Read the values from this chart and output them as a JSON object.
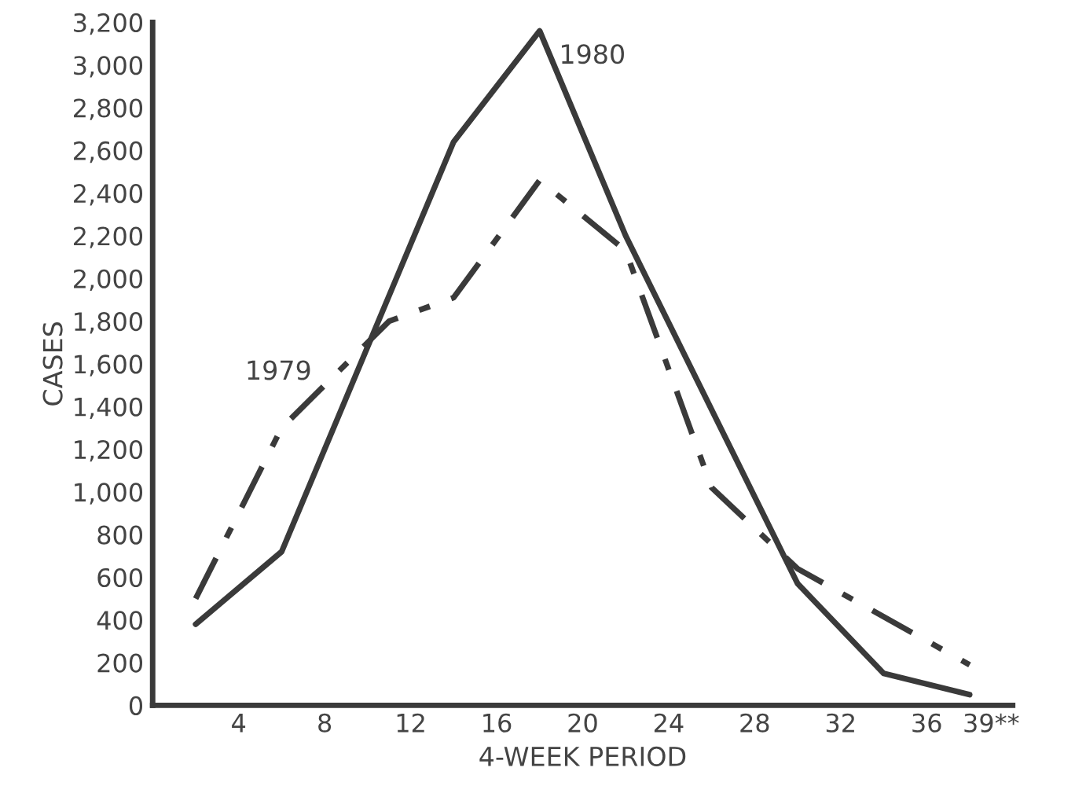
{
  "chart_data": {
    "type": "line",
    "xlabel": "4-WEEK PERIOD",
    "ylabel": "CASES",
    "series": [
      {
        "name": "1980",
        "color": "#3a3a3a",
        "line_style": "solid",
        "x": [
          2,
          6,
          14,
          18,
          22,
          30,
          34,
          38
        ],
        "values": [
          380,
          720,
          2640,
          3160,
          2200,
          570,
          150,
          50
        ]
      },
      {
        "name": "1979",
        "color": "#3a3a3a",
        "line_style": "dashdot",
        "x": [
          2,
          6,
          11,
          14,
          18,
          22,
          26,
          30,
          38
        ],
        "values": [
          500,
          1300,
          1800,
          1910,
          2460,
          2130,
          1020,
          640,
          190
        ]
      }
    ],
    "xlim": [
      0,
      40
    ],
    "xticks": [
      4,
      8,
      12,
      16,
      20,
      24,
      28,
      32,
      36,
      {
        "value": 39,
        "label": "39**"
      }
    ],
    "ylim": [
      0,
      3200
    ],
    "yticks": [
      0,
      200,
      400,
      600,
      800,
      {
        "value": 1000,
        "label": "1,000"
      },
      {
        "value": 1200,
        "label": "1,200"
      },
      {
        "value": 1400,
        "label": "1,400"
      },
      {
        "value": 1600,
        "label": "1,600"
      },
      {
        "value": 1800,
        "label": "1,800"
      },
      {
        "value": 2000,
        "label": "2,000"
      },
      {
        "value": 2200,
        "label": "2,200"
      },
      {
        "value": 2400,
        "label": "2,400"
      },
      {
        "value": 2600,
        "label": "2,600"
      },
      {
        "value": 2800,
        "label": "2,800"
      },
      {
        "value": 3000,
        "label": "3,000"
      },
      {
        "value": 3200,
        "label": "3,200"
      }
    ],
    "grid": false,
    "legend": false,
    "marker": "none"
  }
}
